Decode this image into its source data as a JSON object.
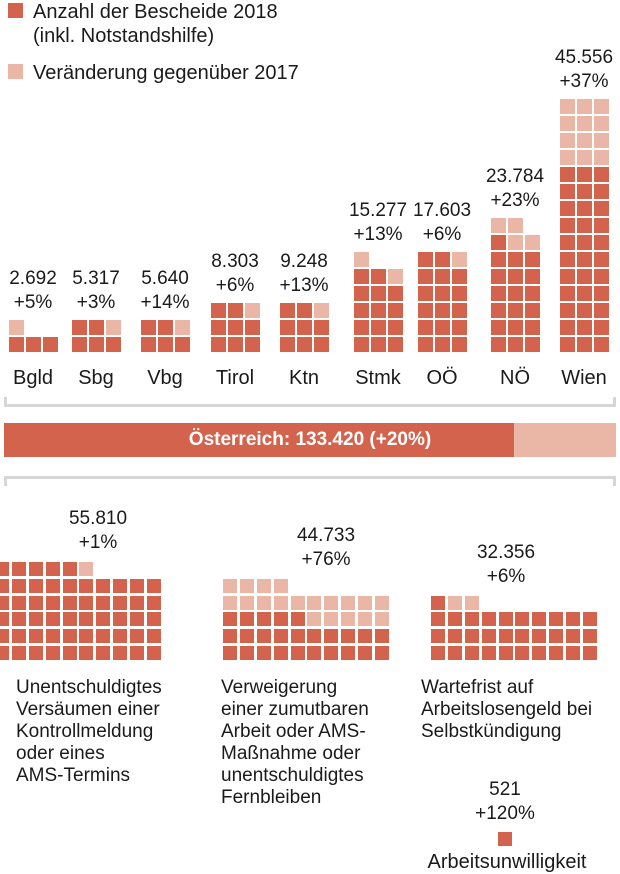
{
  "colors": {
    "base": "#d4634d",
    "change": "#eab7a6"
  },
  "legend": [
    {
      "label_lines": [
        "Anzahl der Bescheide 2018",
        "(inkl. Notstandshilfe)"
      ],
      "color": "#d4634d"
    },
    {
      "label_lines": [
        "Veränderung gegenüber 2017"
      ],
      "color": "#eab7a6"
    }
  ],
  "chart_data": [
    {
      "type": "waffle-bar",
      "series": [
        {
          "name": "Anzahl der Bescheide 2018 (inkl. Notstandshilfe)"
        },
        {
          "name": "Veränderung gegenüber 2017"
        }
      ],
      "categories": [
        "Bgld",
        "Sbg",
        "Vbg",
        "Tirol",
        "Ktn",
        "Stmk",
        "OÖ",
        "NÖ",
        "Wien"
      ],
      "values": [
        2692,
        5317,
        5640,
        8303,
        9248,
        15277,
        17603,
        23784,
        45556
      ],
      "value_labels": [
        "2.692",
        "5.317",
        "5.640",
        "8.303",
        "9.248",
        "15.277",
        "17.603",
        "23.784",
        "45.556"
      ],
      "change_labels": [
        "+5%",
        "+3%",
        "+14%",
        "+6%",
        "+13%",
        "+13%",
        "+6%",
        "+23%",
        "+37%"
      ],
      "change_pct": [
        5,
        3,
        14,
        6,
        13,
        13,
        6,
        23,
        37
      ]
    },
    {
      "type": "bar",
      "label": "Österreich: 133.420 (+20%)",
      "value": 133420,
      "change_pct": 20
    },
    {
      "type": "waffle-bar",
      "categories": [
        [
          "Unentschuldigtes",
          "Versäumen einer",
          "Kontrollmeldung",
          "oder eines",
          "AMS-Termins"
        ],
        [
          "Verweigerung",
          "einer zumutbaren",
          "Arbeit oder AMS-",
          "Maßnahme oder",
          "unentschuldigtes",
          "Fernbleiben"
        ],
        [
          "Wartefrist auf",
          "Arbeitslosengeld bei",
          "Selbstkündigung"
        ],
        [
          "Arbeitsunwilligkeit"
        ]
      ],
      "values": [
        55810,
        44733,
        32356,
        521
      ],
      "value_labels": [
        "55.810",
        "44.733",
        "32.356",
        "521"
      ],
      "change_labels": [
        "+1%",
        "+76%",
        "+6%",
        "+120%"
      ],
      "change_pct": [
        1,
        76,
        6,
        120
      ]
    }
  ]
}
